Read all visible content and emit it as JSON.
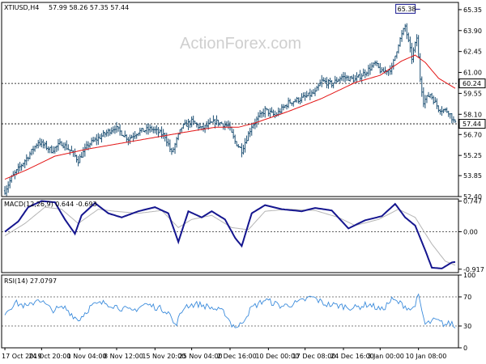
{
  "header": {
    "symbol": "XTIUSD,H4",
    "ohlc": "57.99 58.26 57.35 57.44"
  },
  "watermark": "ActionForex.com",
  "colors": {
    "candles": "#1c4f73",
    "ma": "#e31414",
    "macd_line": "#15168f",
    "macd_signal": "#b5b5b5",
    "rsi": "#3c8cdc",
    "grid_dotted": "#000000",
    "border": "#000000"
  },
  "price_tags": {
    "high_label": "65.38",
    "level_label": "60.24",
    "last_label": "57.44"
  },
  "macd_panel": {
    "title": "MACD(12,26,9) 0.644 -0.693"
  },
  "rsi_panel": {
    "title": "RSI(14) 27.0797"
  },
  "chart_data": [
    {
      "type": "line",
      "name": "price",
      "title": "XTIUSD,H4",
      "y_ticks": [
        "65.35",
        "63.90",
        "62.45",
        "61.00",
        "59.55",
        "58.10",
        "56.70",
        "55.25",
        "53.85",
        "52.40"
      ],
      "ylim": [
        52.4,
        65.85
      ],
      "reference_levels": [
        60.24,
        57.44
      ],
      "x_ticks": [
        "17 Oct 2019",
        "24 Oct 20:00",
        "1 Nov 04:00",
        "8 Nov 12:00",
        "15 Nov 20:00",
        "25 Nov 04:00",
        "2 Dec 16:00",
        "10 Dec 00:00",
        "17 Dec 08:00",
        "24 Dec 16:00",
        "3 Jan 00:00",
        "10 Jan 08:00"
      ],
      "close_keypoints": [
        [
          0,
          52.8
        ],
        [
          4,
          53.7
        ],
        [
          10,
          54.6
        ],
        [
          14,
          55.2
        ],
        [
          20,
          56.2
        ],
        [
          28,
          55.6
        ],
        [
          34,
          56.1
        ],
        [
          40,
          55.5
        ],
        [
          44,
          54.9
        ],
        [
          50,
          56.0
        ],
        [
          58,
          56.6
        ],
        [
          66,
          57.2
        ],
        [
          74,
          56.4
        ],
        [
          80,
          56.9
        ],
        [
          88,
          57.1
        ],
        [
          96,
          56.6
        ],
        [
          100,
          55.4
        ],
        [
          106,
          57.2
        ],
        [
          112,
          57.6
        ],
        [
          118,
          57.1
        ],
        [
          126,
          57.6
        ],
        [
          134,
          57.3
        ],
        [
          138,
          56.2
        ],
        [
          142,
          55.6
        ],
        [
          148,
          57.3
        ],
        [
          156,
          58.4
        ],
        [
          162,
          58.0
        ],
        [
          170,
          58.9
        ],
        [
          178,
          59.2
        ],
        [
          186,
          59.6
        ],
        [
          190,
          60.4
        ],
        [
          196,
          60.2
        ],
        [
          202,
          60.7
        ],
        [
          210,
          60.5
        ],
        [
          216,
          61.0
        ],
        [
          222,
          61.6
        ],
        [
          226,
          61.0
        ],
        [
          232,
          61.3
        ],
        [
          236,
          63.0
        ],
        [
          240,
          64.2
        ],
        [
          244,
          62.0
        ],
        [
          247,
          63.4
        ],
        [
          249,
          60.6
        ],
        [
          251,
          59.0
        ],
        [
          255,
          59.5
        ],
        [
          260,
          58.5
        ],
        [
          266,
          58.3
        ],
        [
          270,
          57.44
        ]
      ],
      "ma_keypoints": [
        [
          0,
          53.6
        ],
        [
          14,
          54.3
        ],
        [
          30,
          55.2
        ],
        [
          50,
          55.7
        ],
        [
          70,
          56.1
        ],
        [
          90,
          56.5
        ],
        [
          110,
          56.9
        ],
        [
          126,
          57.2
        ],
        [
          140,
          57.2
        ],
        [
          150,
          57.5
        ],
        [
          170,
          58.3
        ],
        [
          190,
          59.2
        ],
        [
          210,
          60.3
        ],
        [
          225,
          60.8
        ],
        [
          238,
          61.8
        ],
        [
          246,
          62.2
        ],
        [
          252,
          61.7
        ],
        [
          260,
          60.6
        ],
        [
          270,
          59.9
        ]
      ],
      "n_bars": 271
    },
    {
      "type": "line",
      "name": "MACD",
      "title": "MACD(12,26,9) 0.644 -0.693",
      "y_ticks": [
        "0.747",
        "0.00",
        "-0.917"
      ],
      "ylim": [
        -1.0,
        0.8
      ],
      "macd_keypoints": [
        [
          0,
          0.0
        ],
        [
          8,
          0.25
        ],
        [
          14,
          0.6
        ],
        [
          22,
          0.75
        ],
        [
          30,
          0.72
        ],
        [
          36,
          0.3
        ],
        [
          42,
          -0.05
        ],
        [
          46,
          0.4
        ],
        [
          54,
          0.7
        ],
        [
          62,
          0.45
        ],
        [
          70,
          0.35
        ],
        [
          80,
          0.5
        ],
        [
          90,
          0.6
        ],
        [
          98,
          0.45
        ],
        [
          104,
          -0.25
        ],
        [
          110,
          0.5
        ],
        [
          118,
          0.35
        ],
        [
          124,
          0.5
        ],
        [
          132,
          0.3
        ],
        [
          138,
          -0.15
        ],
        [
          142,
          -0.35
        ],
        [
          148,
          0.45
        ],
        [
          156,
          0.65
        ],
        [
          166,
          0.55
        ],
        [
          178,
          0.5
        ],
        [
          186,
          0.58
        ],
        [
          196,
          0.52
        ],
        [
          206,
          0.08
        ],
        [
          216,
          0.28
        ],
        [
          226,
          0.38
        ],
        [
          234,
          0.68
        ],
        [
          240,
          0.35
        ],
        [
          246,
          0.15
        ],
        [
          252,
          -0.45
        ],
        [
          256,
          -0.88
        ],
        [
          262,
          -0.9
        ],
        [
          268,
          -0.75
        ],
        [
          270,
          -0.74
        ]
      ],
      "signal_keypoints": [
        [
          0,
          -0.1
        ],
        [
          12,
          0.2
        ],
        [
          24,
          0.6
        ],
        [
          34,
          0.55
        ],
        [
          44,
          0.2
        ],
        [
          56,
          0.55
        ],
        [
          66,
          0.5
        ],
        [
          80,
          0.45
        ],
        [
          94,
          0.52
        ],
        [
          104,
          0.1
        ],
        [
          112,
          0.3
        ],
        [
          124,
          0.4
        ],
        [
          136,
          0.1
        ],
        [
          146,
          0.05
        ],
        [
          156,
          0.5
        ],
        [
          170,
          0.55
        ],
        [
          186,
          0.52
        ],
        [
          200,
          0.35
        ],
        [
          210,
          0.15
        ],
        [
          224,
          0.3
        ],
        [
          236,
          0.55
        ],
        [
          246,
          0.35
        ],
        [
          256,
          -0.3
        ],
        [
          264,
          -0.72
        ],
        [
          270,
          -0.82
        ]
      ]
    },
    {
      "type": "line",
      "name": "RSI",
      "title": "RSI(14) 27.0797",
      "y_ticks": [
        "100",
        "70",
        "30",
        "0"
      ],
      "ylim": [
        0,
        100
      ],
      "rsi_keypoints": [
        [
          0,
          48
        ],
        [
          6,
          62
        ],
        [
          14,
          56
        ],
        [
          20,
          68
        ],
        [
          28,
          52
        ],
        [
          36,
          55
        ],
        [
          44,
          38
        ],
        [
          52,
          58
        ],
        [
          60,
          62
        ],
        [
          68,
          56
        ],
        [
          76,
          50
        ],
        [
          84,
          60
        ],
        [
          92,
          55
        ],
        [
          98,
          50
        ],
        [
          102,
          30
        ],
        [
          108,
          58
        ],
        [
          116,
          60
        ],
        [
          124,
          55
        ],
        [
          132,
          48
        ],
        [
          136,
          32
        ],
        [
          140,
          28
        ],
        [
          148,
          55
        ],
        [
          156,
          66
        ],
        [
          166,
          57
        ],
        [
          176,
          62
        ],
        [
          184,
          70
        ],
        [
          192,
          60
        ],
        [
          200,
          58
        ],
        [
          210,
          55
        ],
        [
          218,
          60
        ],
        [
          226,
          52
        ],
        [
          232,
          66
        ],
        [
          238,
          60
        ],
        [
          244,
          52
        ],
        [
          248,
          70
        ],
        [
          252,
          32
        ],
        [
          258,
          38
        ],
        [
          264,
          32
        ],
        [
          268,
          34
        ],
        [
          270,
          27
        ]
      ]
    }
  ]
}
